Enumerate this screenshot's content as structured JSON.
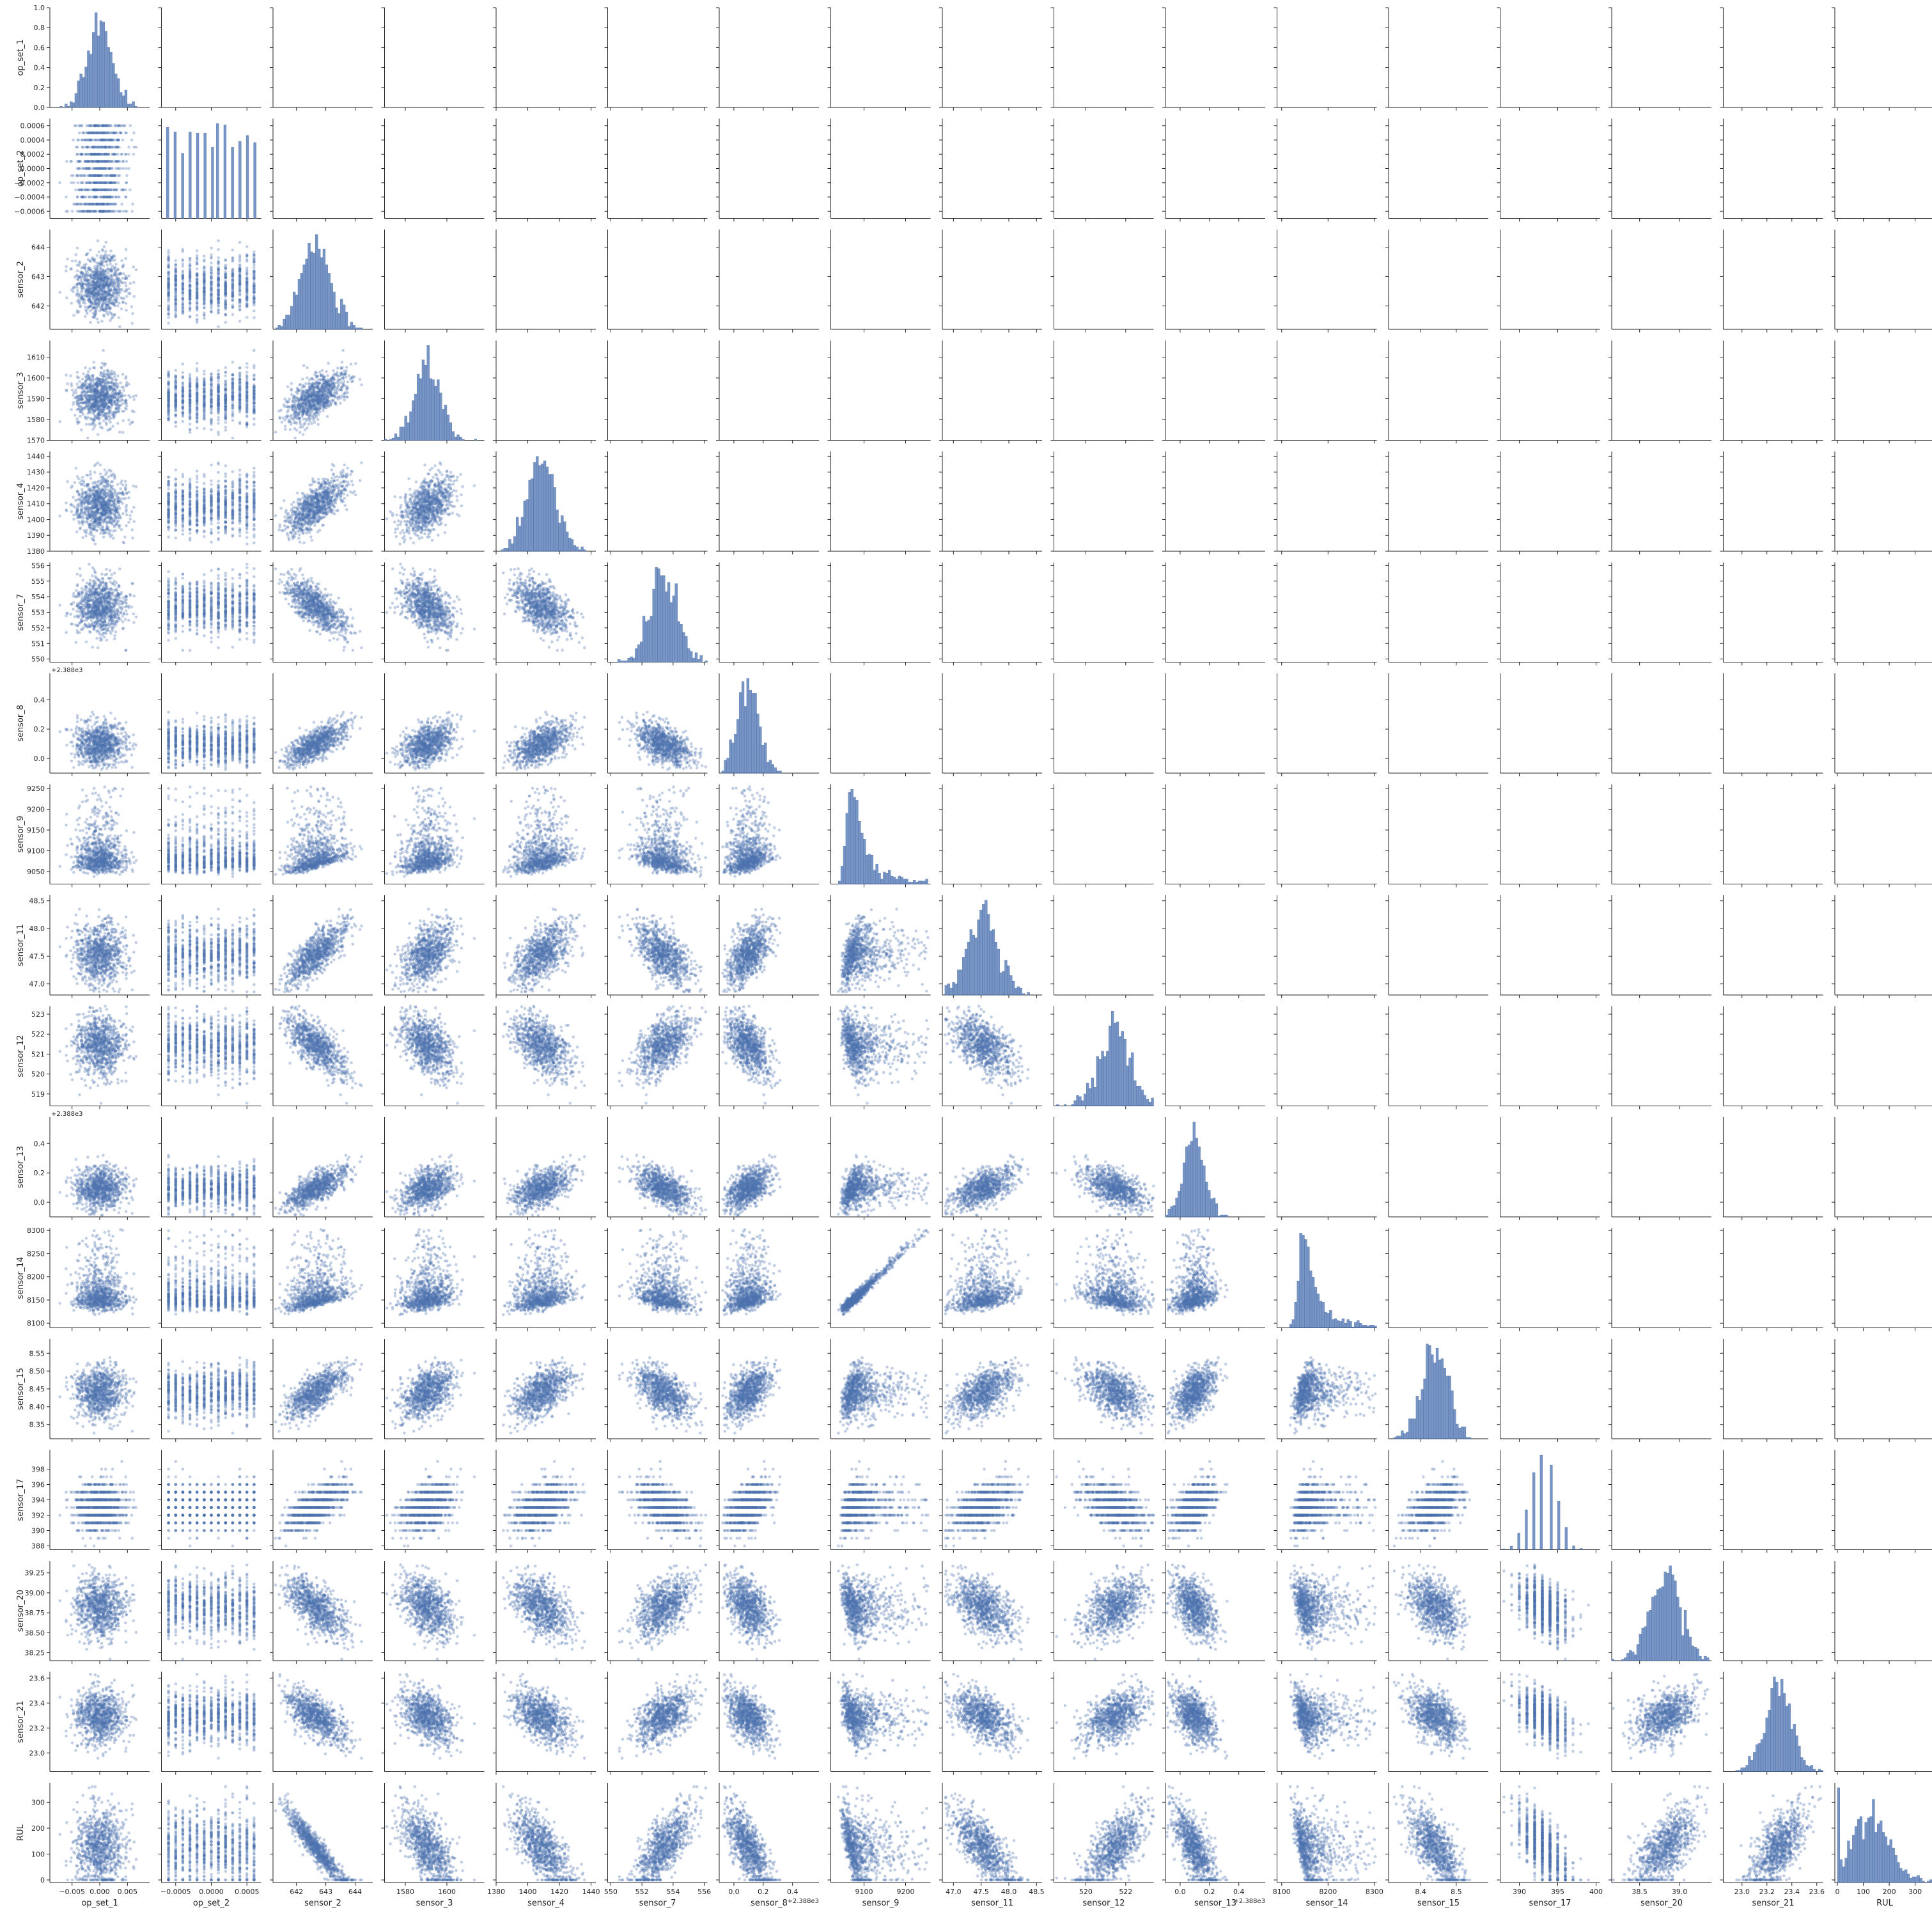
{
  "chart_data": {
    "type": "scatter",
    "title": "",
    "layout": "lower-triangle pair grid",
    "diagonal": "histogram",
    "grid": false,
    "legend": "none",
    "colors": {
      "marks": "#4c72b0",
      "axis": "#262626"
    },
    "variables": [
      {
        "name": "op_set_1",
        "range": [
          -0.009,
          0.009
        ],
        "ticks": [
          -0.005,
          0.0,
          0.005
        ],
        "tick_labels": [
          "−0.005",
          "0.000",
          "0.005"
        ],
        "mean": 0.0,
        "sd": 0.0022,
        "hist_peak": 0.95,
        "density_ticks": [
          0.0,
          0.2,
          0.4,
          0.6,
          0.8,
          1.0
        ],
        "density_tick_labels": [
          "0.0",
          "0.2",
          "0.4",
          "0.6",
          "0.8",
          "1.0"
        ]
      },
      {
        "name": "op_set_2",
        "range": [
          -0.0007,
          0.0007
        ],
        "ticks": [
          -0.0006,
          -0.0004,
          -0.0002,
          0.0,
          0.0002,
          0.0004,
          0.0006
        ],
        "tick_labels": [
          "−0.0006",
          "−0.0004",
          "−0.0002",
          "0.0000",
          "0.0002",
          "0.0004",
          "0.0006"
        ],
        "x_ticks": [
          -0.0005,
          0.0,
          0.0005
        ],
        "x_tick_labels": [
          "−0.0005",
          "0.0000",
          "0.0005"
        ],
        "discrete_values": [
          -0.0006,
          -0.0005,
          -0.0004,
          -0.0003,
          -0.0002,
          -0.0001,
          0.0,
          0.0001,
          0.0002,
          0.0003,
          0.0004,
          0.0005,
          0.0006
        ]
      },
      {
        "name": "sensor_2",
        "range": [
          641.2,
          644.6
        ],
        "ticks": [
          642,
          643,
          644
        ],
        "tick_labels": [
          "642",
          "643",
          "644"
        ],
        "mean": 642.68,
        "sd": 0.5
      },
      {
        "name": "sensor_3",
        "range": [
          1570,
          1618
        ],
        "ticks": [
          1570,
          1580,
          1590,
          1600,
          1610
        ],
        "tick_labels": [
          "1570",
          "1580",
          "1590",
          "1600",
          "1610"
        ],
        "x_ticks": [
          1580,
          1600
        ],
        "x_tick_labels": [
          "1580",
          "1600"
        ],
        "mean": 1590.5,
        "sd": 6.1
      },
      {
        "name": "sensor_4",
        "range": [
          1380,
          1443
        ],
        "ticks": [
          1380,
          1390,
          1400,
          1410,
          1420,
          1430,
          1440
        ],
        "tick_labels": [
          "1380",
          "1390",
          "1400",
          "1410",
          "1420",
          "1430",
          "1440"
        ],
        "x_ticks": [
          1380,
          1400,
          1420,
          1440
        ],
        "x_tick_labels": [
          "1380",
          "1400",
          "1420",
          "1440"
        ],
        "mean": 1408.9,
        "sd": 9.0
      },
      {
        "name": "sensor_7",
        "range": [
          549.8,
          556.2
        ],
        "ticks": [
          550,
          551,
          552,
          553,
          554,
          555,
          556
        ],
        "tick_labels": [
          "550",
          "551",
          "552",
          "553",
          "554",
          "555",
          "556"
        ],
        "x_ticks": [
          550,
          552,
          554,
          556
        ],
        "x_tick_labels": [
          "550",
          "552",
          "554",
          "556"
        ],
        "mean": 553.4,
        "sd": 0.88
      },
      {
        "name": "sensor_8",
        "range": [
          -0.1,
          0.58
        ],
        "ticks": [
          0.0,
          0.2,
          0.4
        ],
        "tick_labels": [
          "0.0",
          "0.2",
          "0.4"
        ],
        "offset_label": "+2.388e3",
        "mean": 0.1,
        "sd": 0.07
      },
      {
        "name": "sensor_9",
        "range": [
          9020,
          9260
        ],
        "ticks": [
          9050,
          9100,
          9150,
          9200,
          9250
        ],
        "tick_labels": [
          "9050",
          "9100",
          "9150",
          "9200",
          "9250"
        ],
        "x_ticks": [
          9100,
          9200
        ],
        "x_tick_labels": [
          "9100",
          "9200"
        ],
        "mean": 9065,
        "sd": 22,
        "skewed": true
      },
      {
        "name": "sensor_11",
        "range": [
          46.8,
          48.6
        ],
        "ticks": [
          47.0,
          47.5,
          48.0,
          48.5
        ],
        "tick_labels": [
          "47.0",
          "47.5",
          "48.0",
          "48.5"
        ],
        "mean": 47.54,
        "sd": 0.27
      },
      {
        "name": "sensor_12",
        "range": [
          518.4,
          523.4
        ],
        "ticks": [
          519,
          520,
          521,
          522,
          523
        ],
        "tick_labels": [
          "519",
          "520",
          "521",
          "522",
          "523"
        ],
        "x_ticks": [
          520,
          522
        ],
        "x_tick_labels": [
          "520",
          "522"
        ],
        "mean": 521.4,
        "sd": 0.74
      },
      {
        "name": "sensor_13",
        "range": [
          -0.1,
          0.58
        ],
        "ticks": [
          0.0,
          0.2,
          0.4
        ],
        "tick_labels": [
          "0.0",
          "0.2",
          "0.4"
        ],
        "offset_label": "+2.388e3",
        "mean": 0.1,
        "sd": 0.07
      },
      {
        "name": "sensor_14",
        "range": [
          8090,
          8305
        ],
        "ticks": [
          8100,
          8150,
          8200,
          8250,
          8300
        ],
        "tick_labels": [
          "8100",
          "8150",
          "8200",
          "8250",
          "8300"
        ],
        "x_ticks": [
          8100,
          8200,
          8300
        ],
        "x_tick_labels": [
          "8100",
          "8200",
          "8300"
        ],
        "mean": 8143,
        "sd": 19,
        "skewed": true
      },
      {
        "name": "sensor_15",
        "range": [
          8.31,
          8.59
        ],
        "ticks": [
          8.35,
          8.4,
          8.45,
          8.5,
          8.55
        ],
        "tick_labels": [
          "8.35",
          "8.40",
          "8.45",
          "8.50",
          "8.55"
        ],
        "x_ticks": [
          8.4,
          8.5
        ],
        "x_tick_labels": [
          "8.4",
          "8.5"
        ],
        "mean": 8.442,
        "sd": 0.037
      },
      {
        "name": "sensor_17",
        "range": [
          387.5,
          400.5
        ],
        "ticks": [
          388,
          390,
          392,
          394,
          396,
          398
        ],
        "tick_labels": [
          "388",
          "390",
          "392",
          "394",
          "396",
          "398"
        ],
        "x_ticks": [
          390,
          395,
          400
        ],
        "x_tick_labels": [
          "390",
          "395",
          "400"
        ],
        "discrete_values": [
          389,
          390,
          391,
          392,
          393,
          394,
          395,
          396,
          397,
          398,
          399,
          400
        ],
        "mean": 393.2,
        "sd": 1.55
      },
      {
        "name": "sensor_20",
        "range": [
          38.15,
          39.4
        ],
        "ticks": [
          38.25,
          38.5,
          38.75,
          39.0,
          39.25
        ],
        "tick_labels": [
          "38.25",
          "38.50",
          "38.75",
          "39.00",
          "39.25"
        ],
        "x_ticks": [
          38.5,
          39.0
        ],
        "x_tick_labels": [
          "38.5",
          "39.0"
        ],
        "mean": 38.82,
        "sd": 0.18
      },
      {
        "name": "sensor_21",
        "range": [
          22.85,
          23.65
        ],
        "ticks": [
          23.0,
          23.2,
          23.4,
          23.6
        ],
        "tick_labels": [
          "23.0",
          "23.2",
          "23.4",
          "23.6"
        ],
        "mean": 23.29,
        "sd": 0.108
      },
      {
        "name": "RUL",
        "range": [
          -10,
          375
        ],
        "ticks": [
          0,
          100,
          200,
          300
        ],
        "tick_labels": [
          "0",
          "100",
          "200",
          "300"
        ],
        "x_ticks": [
          0,
          100,
          200,
          300
        ],
        "x_tick_labels": [
          "0",
          "100",
          "200",
          "300"
        ],
        "distribution": "roughly uniform 0–200, tapering to ~360"
      }
    ],
    "approx_correlations_with_sensor_2": {
      "sensor_3": 0.6,
      "sensor_4": 0.7,
      "sensor_7": -0.7,
      "sensor_8": 0.7,
      "sensor_9": 0.3,
      "sensor_11": 0.75,
      "sensor_12": -0.7,
      "sensor_13": 0.7,
      "sensor_14": 0.3,
      "sensor_15": 0.7,
      "sensor_17": 0.65,
      "sensor_20": -0.65,
      "sensor_21": -0.65,
      "RUL": -0.6
    },
    "notable_pairs": {
      "sensor_9_vs_sensor_14": "near-linear, r ≈ 0.96"
    }
  }
}
